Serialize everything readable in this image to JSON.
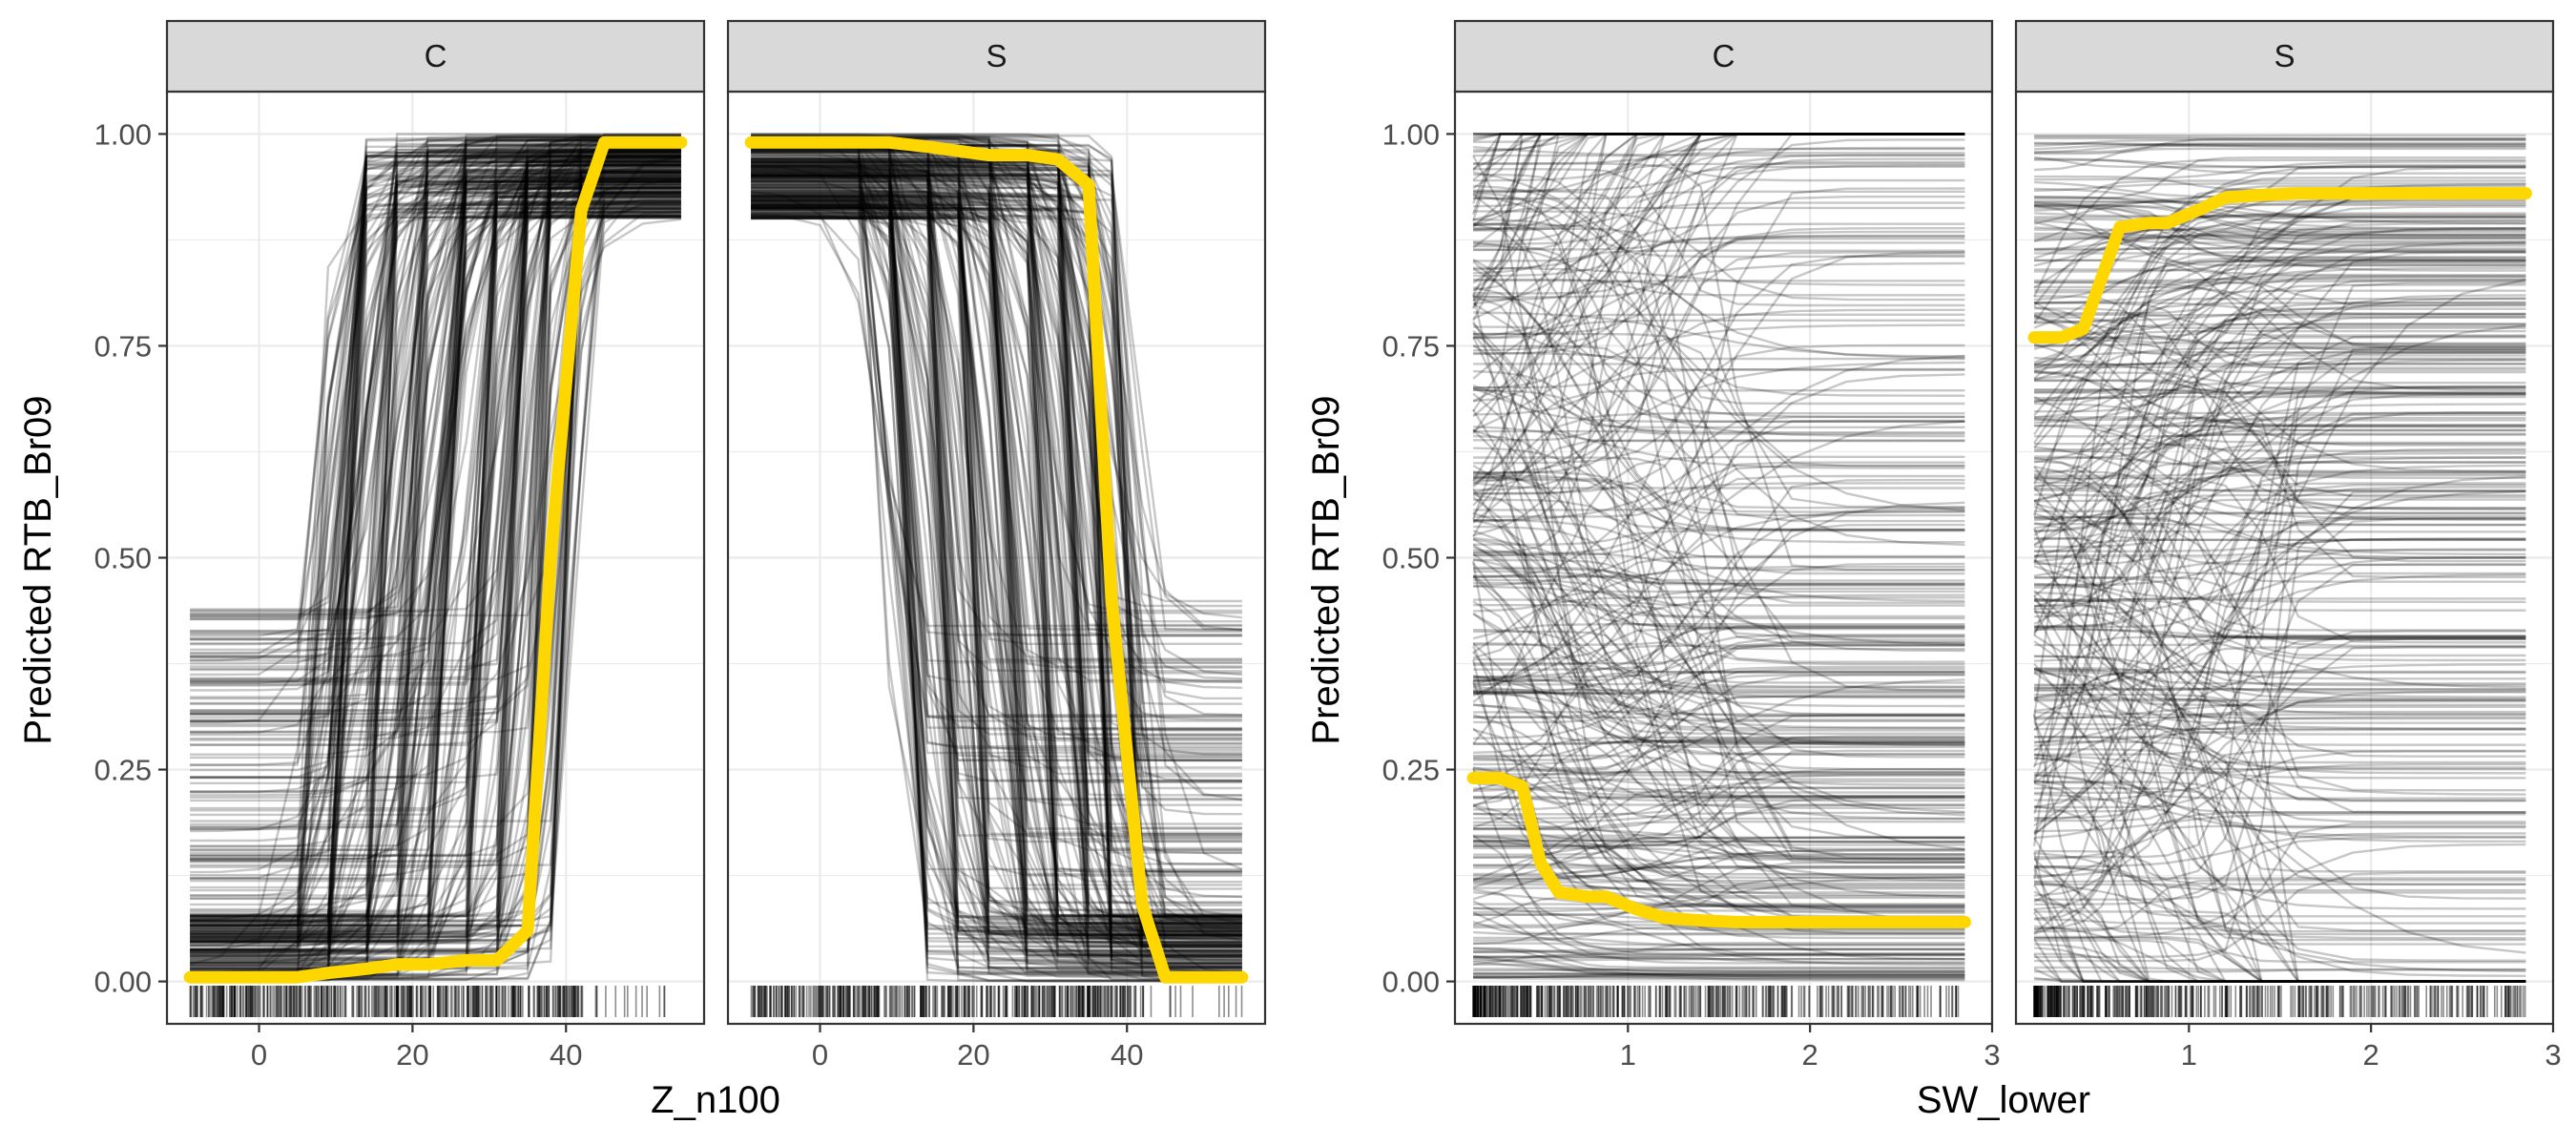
{
  "figure": {
    "background": "#ffffff",
    "panel_border": "#333333",
    "grid_color": "#ebebeb",
    "strip_fill": "#d9d9d9",
    "ice_color": "#000000",
    "pdp_color": "#ffd700"
  },
  "chart_data": [
    {
      "type": "line",
      "description_kind": "ICE curves with partial dependence",
      "facet_by": "group",
      "xlabel": "Z_n100",
      "ylabel": "Predicted RTB_Br09",
      "xlim": [
        -12,
        58
      ],
      "ylim": [
        -0.05,
        1.05
      ],
      "xticks": [
        0,
        20,
        40
      ],
      "xtick_labels": [
        "0",
        "20",
        "40"
      ],
      "yticks": [
        0,
        0.25,
        0.5,
        0.75,
        1
      ],
      "ytick_labels": [
        "0.00",
        "0.25",
        "0.50",
        "0.75",
        "1.00"
      ],
      "grid": true,
      "panels": [
        {
          "strip_label": "C",
          "pdp": {
            "x": [
              -9,
              -5,
              0,
              5,
              9,
              14,
              18,
              22,
              27,
              31,
              35,
              38,
              42,
              45,
              50,
              55
            ],
            "y": [
              0.005,
              0.005,
              0.005,
              0.005,
              0.01,
              0.015,
              0.02,
              0.02,
              0.025,
              0.025,
              0.06,
              0.5,
              0.91,
              0.99,
              0.99,
              0.99
            ]
          }
        },
        {
          "strip_label": "S",
          "pdp": {
            "x": [
              -9,
              -5,
              0,
              5,
              9,
              14,
              18,
              22,
              27,
              31,
              35,
              38,
              42,
              45,
              50,
              55
            ],
            "y": [
              0.99,
              0.99,
              0.99,
              0.99,
              0.99,
              0.985,
              0.98,
              0.975,
              0.975,
              0.97,
              0.94,
              0.45,
              0.09,
              0.005,
              0.005,
              0.005
            ]
          }
        }
      ]
    },
    {
      "type": "line",
      "description_kind": "ICE curves with partial dependence",
      "facet_by": "group",
      "xlabel": "SW_lower",
      "ylabel": "Predicted RTB_Br09",
      "xlim": [
        0.05,
        3.0
      ],
      "ylim": [
        -0.05,
        1.05
      ],
      "xticks": [
        1,
        2,
        3
      ],
      "xtick_labels": [
        "1",
        "2",
        "3"
      ],
      "yticks": [
        0,
        0.25,
        0.5,
        0.75,
        1
      ],
      "ytick_labels": [
        "0.00",
        "0.25",
        "0.50",
        "0.75",
        "1.00"
      ],
      "grid": true,
      "panels": [
        {
          "strip_label": "C",
          "pdp": {
            "x": [
              0.15,
              0.3,
              0.42,
              0.52,
              0.62,
              0.78,
              0.88,
              1.05,
              1.2,
              1.4,
              1.6,
              1.9,
              2.2,
              2.5,
              2.85
            ],
            "y": [
              0.24,
              0.24,
              0.23,
              0.14,
              0.105,
              0.1,
              0.1,
              0.085,
              0.075,
              0.072,
              0.07,
              0.07,
              0.07,
              0.07,
              0.07
            ]
          }
        },
        {
          "strip_label": "S",
          "pdp": {
            "x": [
              0.15,
              0.3,
              0.42,
              0.52,
              0.62,
              0.78,
              0.88,
              1.05,
              1.2,
              1.4,
              1.6,
              1.9,
              2.2,
              2.5,
              2.85
            ],
            "y": [
              0.76,
              0.76,
              0.77,
              0.83,
              0.89,
              0.895,
              0.895,
              0.91,
              0.925,
              0.928,
              0.93,
              0.93,
              0.93,
              0.93,
              0.93
            ]
          }
        }
      ]
    }
  ]
}
